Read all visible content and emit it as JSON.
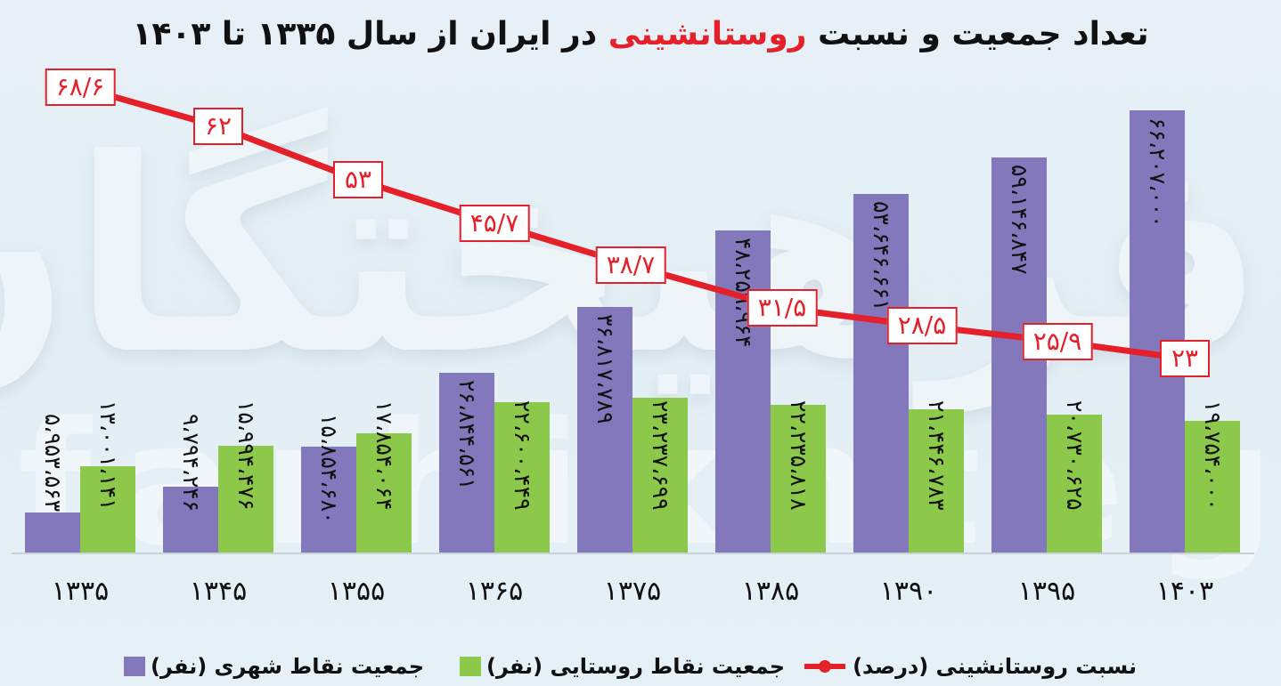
{
  "title": {
    "part1": "تعداد جمعیت و نسبت ",
    "highlight": "روستانشینی",
    "part2": " در ایران از سال ۱۳۳۵ تا ۱۴۰۳",
    "highlight_color": "#e4202a"
  },
  "watermark": {
    "top": "فرهیختگان",
    "bottom": "farhikhtegan"
  },
  "colors": {
    "urban": "#8478bd",
    "rural": "#8cc84a",
    "line": "#e4202a"
  },
  "legend": {
    "line": "نسبت روستانشینی (درصد)",
    "rural": "جمعیت نقاط روستایی (نفر)",
    "urban": "جمعیت نقاط شهری (نفر)"
  },
  "x_labels": [
    "۱۳۳۵",
    "۱۳۴۵",
    "۱۳۵۵",
    "۱۳۶۵",
    "۱۳۷۵",
    "۱۳۸۵",
    "۱۳۹۰",
    "۱۳۹۵",
    "۱۴۰۳"
  ],
  "urban_labels": [
    "۵،۹۵۳،۵۶۳",
    "۹،۷۹۴،۲۴۶",
    "۱۵،۸۵۴،۶۸۰",
    "۲۶،۸۴۴،۵۶۱",
    "۳۶،۸۱۷،۷۸۹",
    "۴۸،۲۵۹،۹۶۴",
    "۵۳،۶۴۶،۶۶۱",
    "۵۹،۱۴۶،۸۴۷",
    "۶۶،۲۰۷،۰۰۰"
  ],
  "rural_labels": [
    "۱۳،۰۰۱،۱۴۱",
    "۱۵،۹۹۴،۴۷۶",
    "۱۷،۸۵۴،۰۶۴",
    "۲۲،۶۰۰،۴۴۹",
    "۲۳،۲۳۷،۶۹۹",
    "۲۲،۲۳۵،۸۱۸",
    "۲۱،۴۴۶،۷۸۳",
    "۲۰،۷۳۰،۶۲۵",
    "۱۹،۷۵۴،۰۰۰"
  ],
  "ratio_labels": [
    "۶۸/۶",
    "۶۲",
    "۵۳",
    "۴۵/۷",
    "۳۸/۷",
    "۳۱/۵",
    "۲۸/۵",
    "۲۵/۹",
    "۲۳"
  ],
  "chart_data": {
    "type": "bar",
    "title": "تعداد جمعیت و نسبت روستانشینی در ایران از سال ۱۳۳۵ تا ۱۴۰۳",
    "categories": [
      "1335",
      "1345",
      "1355",
      "1365",
      "1375",
      "1385",
      "1390",
      "1395",
      "1403"
    ],
    "series": [
      {
        "name": "جمعیت نقاط شهری (نفر)",
        "type": "bar",
        "color": "#8478bd",
        "values": [
          5953563,
          9794246,
          15854680,
          26844561,
          36817789,
          48259964,
          53646661,
          59146847,
          66207000
        ]
      },
      {
        "name": "جمعیت نقاط روستایی (نفر)",
        "type": "bar",
        "color": "#8cc84a",
        "values": [
          13001141,
          15994476,
          17854064,
          22600449,
          23237699,
          22235818,
          21446783,
          20730625,
          19754000
        ]
      },
      {
        "name": "نسبت روستانشینی (درصد)",
        "type": "line",
        "color": "#e4202a",
        "values": [
          68.6,
          62,
          53,
          45.7,
          38.7,
          31.5,
          28.5,
          25.9,
          23
        ]
      }
    ],
    "xlabel": "",
    "ylabel": "",
    "grid": false,
    "legend_position": "bottom"
  }
}
